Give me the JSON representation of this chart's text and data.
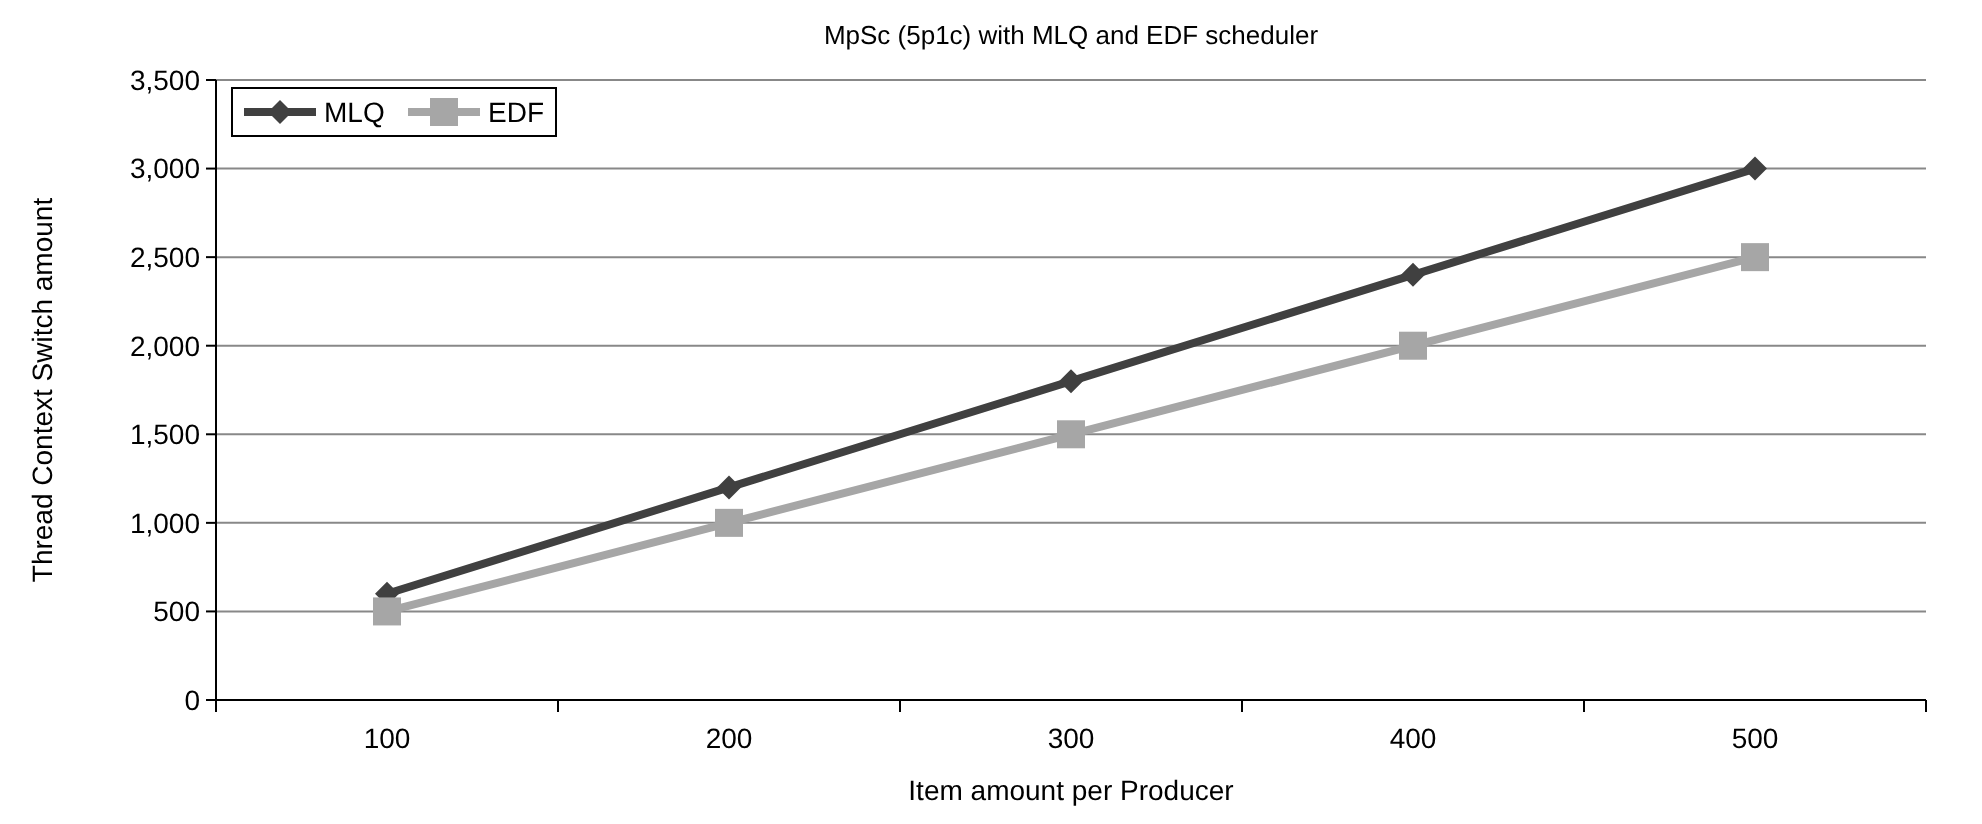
{
  "chart_data": {
    "type": "line",
    "title": "MpSc (5p1c) with MLQ and EDF scheduler",
    "xlabel": "Item amount per Producer",
    "ylabel": "Thread Context Switch amount",
    "categories": [
      "100",
      "200",
      "300",
      "400",
      "500"
    ],
    "series": [
      {
        "name": "MLQ",
        "color": "#404040",
        "marker": "diamond",
        "values": [
          600,
          1200,
          1800,
          2400,
          3000
        ]
      },
      {
        "name": "EDF",
        "color": "#a6a6a6",
        "marker": "square",
        "values": [
          500,
          1000,
          1500,
          2000,
          2500
        ]
      }
    ],
    "ylim": [
      0,
      3500
    ],
    "yticks": [
      0,
      {
        "value": 500,
        "label": "500"
      },
      {
        "value": 1000,
        "label": "1,000"
      },
      {
        "value": 1500,
        "label": "1,500"
      },
      {
        "value": 2000,
        "label": "2,000"
      },
      {
        "value": 2500,
        "label": "2,500"
      },
      {
        "value": 3000,
        "label": "3,000"
      },
      {
        "value": 3500,
        "label": "3,500"
      }
    ],
    "grid": "y",
    "legend": "top left",
    "line_style": "solid"
  }
}
